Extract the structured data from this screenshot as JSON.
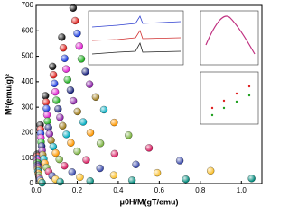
{
  "chart_data": {
    "type": "scatter",
    "x_label": "μ0H/M(gT/emu)",
    "y_label": "M²(emu/g)²",
    "xlim": [
      0,
      1.1
    ],
    "ylim": [
      0,
      700
    ],
    "xticks": [
      {
        "value": 0,
        "label": "0.0"
      },
      {
        "value": 0.2,
        "label": "0.2"
      },
      {
        "value": 0.4,
        "label": "0.4"
      },
      {
        "value": 0.6,
        "label": "0.6"
      },
      {
        "value": 0.8,
        "label": "0.8"
      },
      {
        "value": 1,
        "label": "1.0"
      }
    ],
    "yticks": [
      0,
      100,
      200,
      300,
      400,
      500,
      600,
      700
    ],
    "series": [
      {
        "color": "#111111",
        "x": [
          0.005,
          0.02,
          0.045,
          0.08,
          0.125,
          0.18
        ],
        "values": [
          115,
          230,
          345,
          460,
          575,
          690
        ]
      },
      {
        "color": "#e0201c",
        "x": [
          0.005,
          0.021,
          0.048,
          0.084,
          0.132,
          0.19
        ],
        "values": [
          107,
          213,
          320,
          427,
          533,
          640
        ]
      },
      {
        "color": "#1c3de0",
        "x": [
          0.006,
          0.022,
          0.05,
          0.089,
          0.139,
          0.2
        ],
        "values": [
          98,
          197,
          295,
          393,
          492,
          590
        ]
      },
      {
        "color": "#e020d0",
        "x": [
          0.006,
          0.023,
          0.053,
          0.093,
          0.146,
          0.21
        ],
        "values": [
          90,
          180,
          270,
          360,
          450,
          540
        ]
      },
      {
        "color": "#20b020",
        "x": [
          0.006,
          0.024,
          0.055,
          0.098,
          0.153,
          0.22
        ],
        "values": [
          82,
          163,
          245,
          327,
          408,
          490
        ]
      },
      {
        "color": "#1a237e",
        "x": [
          0.007,
          0.027,
          0.06,
          0.107,
          0.167,
          0.24
        ],
        "values": [
          73,
          147,
          220,
          293,
          367,
          440
        ]
      },
      {
        "color": "#8e24aa",
        "x": [
          0.007,
          0.029,
          0.065,
          0.116,
          0.181,
          0.26
        ],
        "values": [
          65,
          130,
          195,
          260,
          325,
          390
        ]
      },
      {
        "color": "#9e7b1a",
        "x": [
          0.008,
          0.032,
          0.073,
          0.129,
          0.201,
          0.29
        ],
        "values": [
          57,
          113,
          170,
          227,
          283,
          340
        ]
      },
      {
        "color": "#00acc1",
        "x": [
          0.009,
          0.037,
          0.083,
          0.147,
          0.229,
          0.33
        ],
        "values": [
          48,
          97,
          145,
          193,
          242,
          290
        ]
      },
      {
        "color": "#ff9800",
        "x": [
          0.011,
          0.042,
          0.095,
          0.169,
          0.264,
          0.38
        ],
        "values": [
          40,
          80,
          120,
          160,
          200,
          240
        ]
      },
      {
        "color": "#7cb342",
        "x": [
          0.013,
          0.05,
          0.113,
          0.2,
          0.313,
          0.45
        ],
        "values": [
          32,
          63,
          95,
          127,
          158,
          190
        ]
      },
      {
        "color": "#d81b60",
        "x": [
          0.015,
          0.061,
          0.138,
          0.244,
          0.382,
          0.55
        ],
        "values": [
          23,
          47,
          70,
          93,
          117,
          140
        ]
      },
      {
        "color": "#3949ab",
        "x": [
          0.019,
          0.078,
          0.175,
          0.311,
          0.486,
          0.7
        ],
        "values": [
          15,
          30,
          45,
          60,
          75,
          90
        ]
      },
      {
        "color": "#fbc02d",
        "x": [
          0.024,
          0.094,
          0.213,
          0.378,
          0.59,
          0.85
        ],
        "values": [
          8,
          17,
          25,
          33,
          42,
          50
        ]
      },
      {
        "color": "#00897b",
        "x": [
          0.029,
          0.117,
          0.263,
          0.467,
          0.729,
          1.05
        ],
        "values": [
          3,
          7,
          10,
          13,
          17,
          20
        ]
      }
    ]
  }
}
